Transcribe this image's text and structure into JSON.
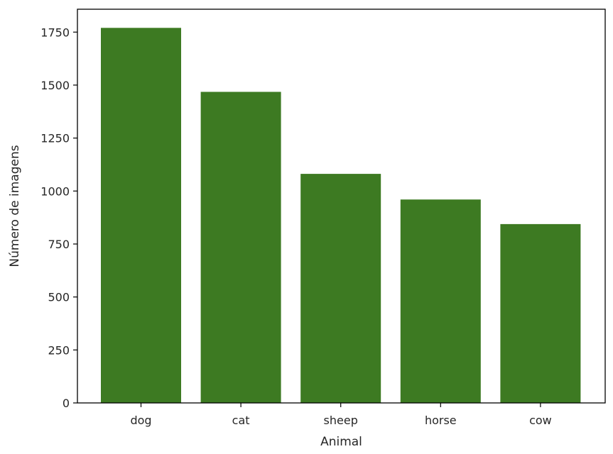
{
  "chart_data": {
    "type": "bar",
    "title": "",
    "xlabel": "Animal",
    "ylabel": "Número de imagens",
    "categories": [
      "dog",
      "cat",
      "sheep",
      "horse",
      "cow"
    ],
    "values": [
      1770,
      1468,
      1081,
      960,
      844
    ],
    "ylim": [
      0,
      1858
    ],
    "yticks": [
      0,
      250,
      500,
      750,
      1000,
      1250,
      1500,
      1750
    ],
    "ytick_labels": [
      "0",
      "250",
      "500",
      "750",
      "1000",
      "1250",
      "1500",
      "1750"
    ],
    "grid": false,
    "legend": "none",
    "bar_color": "#3d7a22"
  }
}
